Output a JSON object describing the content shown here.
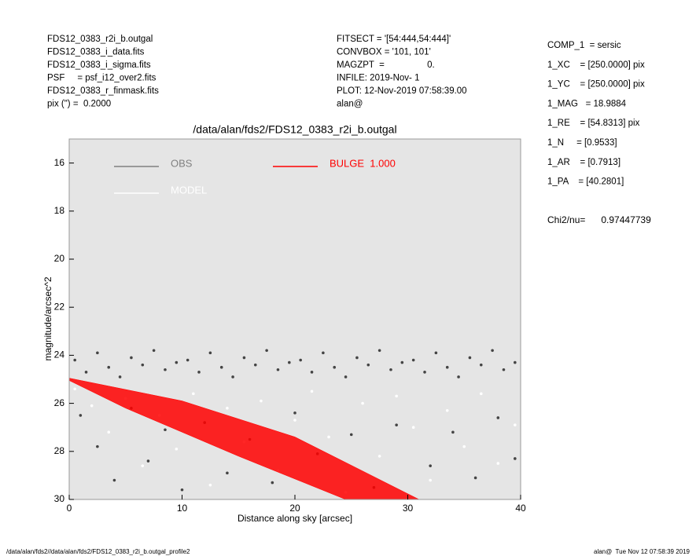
{
  "header": {
    "left": [
      "FDS12_0383_r2i_b.outgal",
      "FDS12_0383_i_data.fits",
      "FDS12_0383_i_sigma.fits",
      "PSF     = psf_i12_over2.fits",
      "FDS12_0383_r_finmask.fits",
      "pix (\") =  0.2000"
    ],
    "middle": [
      "FITSECT = '[54:444,54:444]'",
      "CONVBOX = '101, 101'",
      "MAGZPT  =                 0.",
      "INFILE: 2019-Nov- 1",
      "PLOT: 12-Nov-2019 07:58:39.00",
      "alan@"
    ],
    "right": [
      "COMP_1  = sersic",
      "1_XC    = [250.0000] pix",
      "1_YC    = [250.0000] pix",
      "1_MAG   = 18.9884",
      "1_RE    = [54.8313] pix",
      "1_N     = [0.9533]",
      "1_AR    = [0.7913]",
      "1_PA    = [40.2801]"
    ],
    "chi2": "Chi2/nu=      0.97447739"
  },
  "footer": {
    "left": "/data/alan/fds2//data/alan/fds2/FDS12_0383_r2i_b.outgal_profile2",
    "right": "alan@  Tue Nov 12 07:58:39 2019"
  },
  "chart_data": {
    "type": "scatter",
    "title": "/data/alan/fds2/FDS12_0383_r2i_b.outgal",
    "xlabel": "Distance along sky [arcsec]",
    "ylabel": "magnitude/arcsec^2",
    "xlim": [
      0,
      40
    ],
    "ylim": [
      30,
      15
    ],
    "xticks": [
      0,
      10,
      20,
      30,
      40
    ],
    "yticks": [
      16,
      18,
      20,
      22,
      24,
      26,
      28,
      30
    ],
    "background": "#e5e5e5",
    "series": [
      {
        "name": "OBS",
        "color": "#808080",
        "marker_color": "#444444",
        "draw": "points",
        "x": [
          0.5,
          1.5,
          2.5,
          3.5,
          4.5,
          5.5,
          6.5,
          7.5,
          8.5,
          9.5,
          10.5,
          11.5,
          12.5,
          13.5,
          14.5,
          15.5,
          16.5,
          17.5,
          18.5,
          19.5,
          20.5,
          21.5,
          22.5,
          23.5,
          24.5,
          25.5,
          26.5,
          27.5,
          28.5,
          29.5,
          30.5,
          31.5,
          32.5,
          33.5,
          34.5,
          35.5,
          36.5,
          37.5,
          38.5,
          39.5,
          1,
          2.5,
          4,
          5.5,
          7,
          8.5,
          10,
          12,
          14,
          16,
          18,
          20,
          22,
          25,
          27,
          29,
          32,
          34,
          36,
          38,
          39.5
        ],
        "values": [
          24.2,
          24.7,
          23.9,
          24.5,
          24.9,
          24.1,
          24.4,
          23.8,
          24.6,
          24.3,
          24.2,
          24.7,
          23.9,
          24.5,
          24.9,
          24.1,
          24.4,
          23.8,
          24.6,
          24.3,
          24.2,
          24.7,
          23.9,
          24.5,
          24.9,
          24.1,
          24.4,
          23.8,
          24.6,
          24.3,
          24.2,
          24.7,
          23.9,
          24.5,
          24.9,
          24.1,
          24.4,
          23.8,
          24.6,
          24.3,
          26.5,
          27.8,
          29.2,
          26.2,
          28.4,
          27.1,
          29.6,
          26.8,
          28.9,
          27.5,
          29.3,
          26.4,
          28.1,
          27.3,
          29.5,
          26.9,
          28.6,
          27.2,
          29.1,
          26.6,
          28.3
        ]
      },
      {
        "name": "MODEL",
        "color": "#ffffff",
        "draw": "points",
        "x": [
          0.5,
          2,
          3.5,
          5,
          6.5,
          8,
          9.5,
          11,
          12.5,
          14,
          15.5,
          17,
          18.5,
          20,
          21.5,
          23,
          24.5,
          26,
          27.5,
          29,
          30.5,
          32,
          33.5,
          35,
          36.5,
          38,
          39.5
        ],
        "values": [
          25.4,
          26.1,
          27.2,
          25.8,
          28.6,
          26.5,
          27.9,
          25.6,
          29.4,
          26.2,
          27.6,
          25.9,
          28.8,
          26.7,
          25.5,
          27.4,
          29.7,
          26.0,
          28.2,
          25.7,
          27.0,
          29.2,
          26.3,
          27.8,
          25.6,
          28.5,
          26.9
        ]
      },
      {
        "name": "BULGE  1.000",
        "color": "#ff0000",
        "draw": "area",
        "x": [
          0,
          10,
          20,
          31,
          24.5,
          15,
          5,
          0
        ],
        "values": [
          24.95,
          25.9,
          27.4,
          30,
          30,
          28.2,
          26.2,
          25.05
        ]
      }
    ]
  }
}
